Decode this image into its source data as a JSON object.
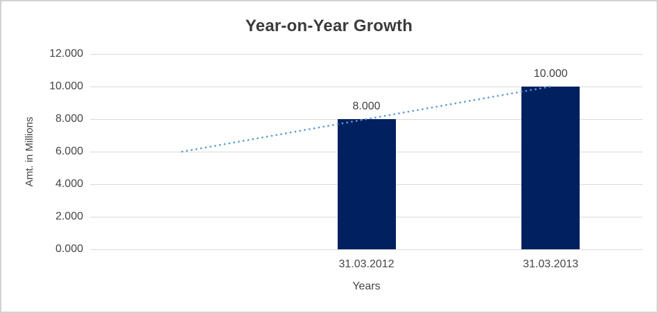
{
  "chart": {
    "background_color": "#ffffff",
    "border_color": "#d2d2d2",
    "gridline_color": "#d9d9d9",
    "text_color": "#454545",
    "title_color": "#3b3b3b"
  },
  "chart_data": {
    "type": "bar",
    "title": "Year-on-Year Growth",
    "xlabel": "Years",
    "ylabel": "Amt. in Millions",
    "categories": [
      "31.03.2012",
      "31.03.2013"
    ],
    "values": [
      8.0,
      10.0
    ],
    "data_labels": [
      "8.000",
      "10.000"
    ],
    "bar_color": "#002060",
    "ylim": [
      0,
      12
    ],
    "ytick_values": [
      0,
      2,
      4,
      6,
      8,
      10,
      12
    ],
    "ytick_labels": [
      "0.000",
      "2.000",
      "4.000",
      "6.000",
      "8.000",
      "10.000",
      "12.000"
    ],
    "grid": "horizontal",
    "legend": "none",
    "trendline": {
      "style": "dotted",
      "color": "#5b9bd5",
      "start_value": 6.0,
      "end_value": 10.0
    }
  }
}
